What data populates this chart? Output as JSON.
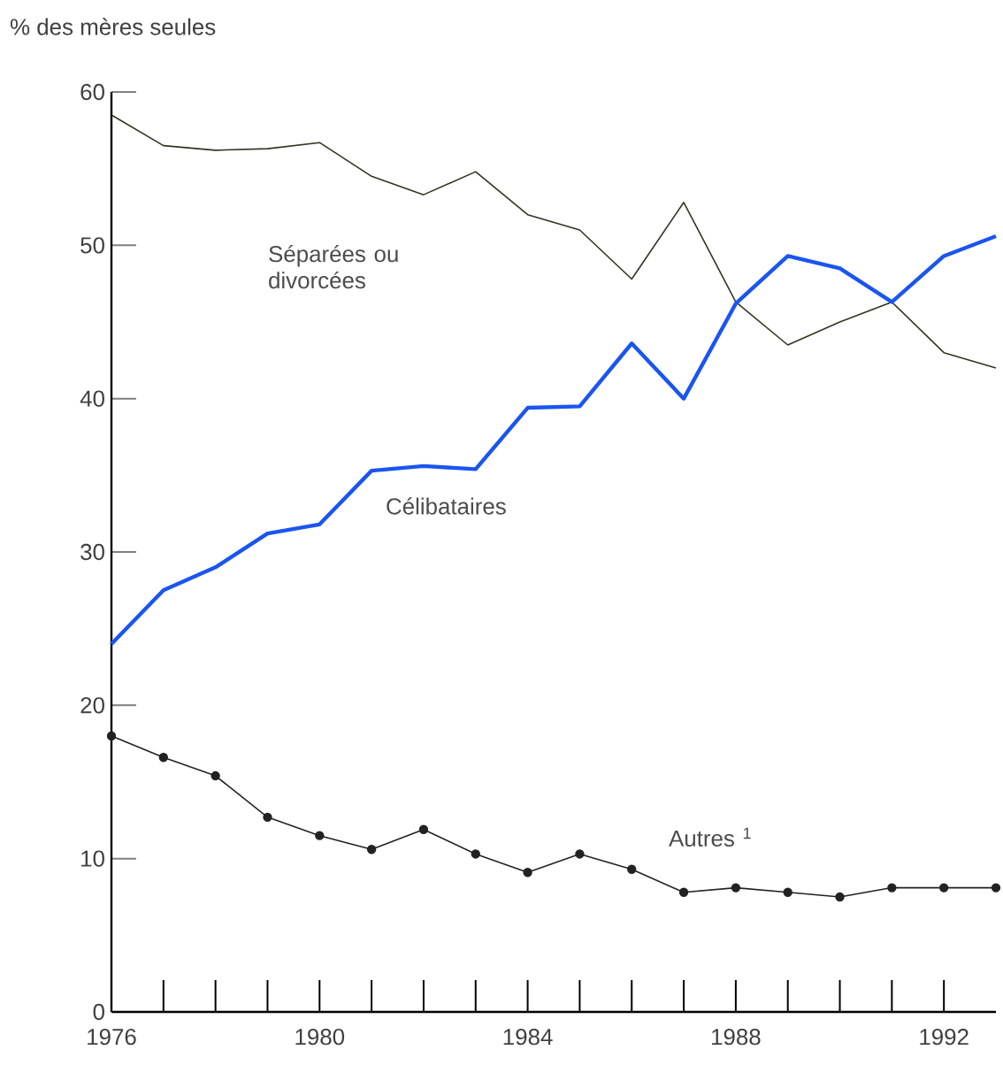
{
  "chart_data": {
    "type": "line",
    "ylabel": "% des mères seules",
    "x": [
      1976,
      1977,
      1978,
      1979,
      1980,
      1981,
      1982,
      1983,
      1984,
      1985,
      1986,
      1987,
      1988,
      1989,
      1990,
      1991,
      1992,
      1993
    ],
    "series": [
      {
        "name": "Séparées ou divorcées",
        "color": "#333322",
        "marker": "none",
        "values": [
          58.5,
          56.5,
          56.2,
          56.3,
          56.7,
          54.5,
          53.3,
          54.8,
          52,
          51,
          47.8,
          52.8,
          46.3,
          43.5,
          45,
          46.3,
          43,
          42
        ]
      },
      {
        "name": "Célibataires",
        "color": "#1a55f0",
        "marker": "none",
        "values": [
          24,
          27.5,
          29,
          31.2,
          31.8,
          35.3,
          35.6,
          35.4,
          39.4,
          39.5,
          43.6,
          40,
          46.2,
          49.3,
          48.5,
          46.3,
          49.3,
          50.6
        ]
      },
      {
        "name": "Autres $^{1}$",
        "color": "#222222",
        "marker": "circle",
        "values": [
          18,
          16.6,
          15.4,
          12.7,
          11.5,
          10.6,
          11.9,
          10.3,
          9.1,
          10.3,
          9.3,
          7.8,
          8.1,
          7.8,
          7.5,
          8.1,
          8.1,
          8.1
        ]
      }
    ],
    "xlim": [
      1976,
      1993
    ],
    "xticks": [
      1976,
      1980,
      1984,
      1988,
      1992
    ],
    "ylim": [
      0,
      60
    ],
    "yticks": [
      0,
      10,
      20,
      30,
      40,
      50,
      60
    ],
    "grid": false
  }
}
